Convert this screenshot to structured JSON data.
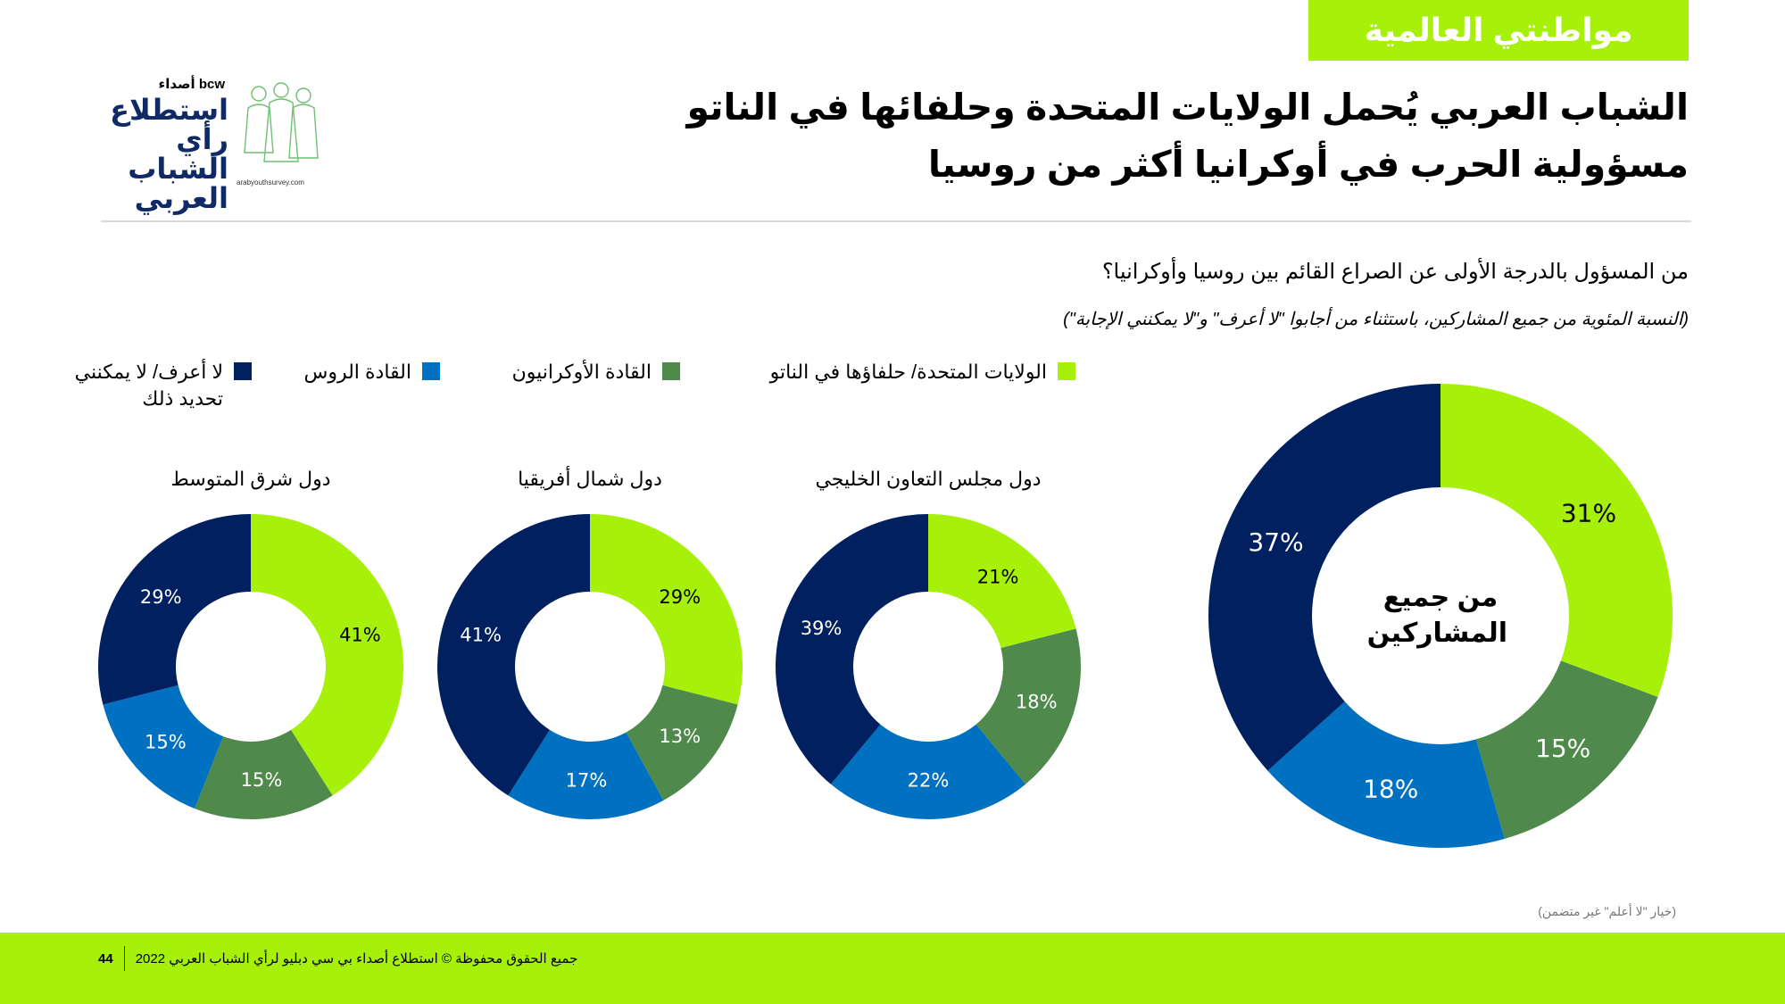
{
  "header": {
    "section_tag": "مواطنتي العالمية",
    "title": "الشباب العربي يُحمل الولايات المتحدة وحلفائها في الناتو مسؤولية الحرب في أوكرانيا أكثر من روسيا"
  },
  "logo": {
    "brand": "bcw أصداء",
    "line1": "استطلاع",
    "line2": "رأي الشباب",
    "line3": "العربي",
    "url": "arabyouthsurvey.com"
  },
  "question": "من المسؤول بالدرجة الأولى عن الصراع القائم بين روسيا وأوكرانيا؟",
  "base_note": "(النسبة المئوية من جميع المشاركين، باستثناء من أجابوا \"لا أعرف\" و\"لا يمكنني الإجابة\")",
  "colors": {
    "us_nato": "#a6f00a",
    "ukraine": "#4f8a4c",
    "russia": "#0070c0",
    "dont_know": "#002060",
    "accent": "#a6f00a"
  },
  "legend": [
    {
      "label": "الولايات المتحدة/ حلفاؤها في الناتو",
      "color": "#a6f00a"
    },
    {
      "label": "القادة الأوكرانيون",
      "color": "#4f8a4c"
    },
    {
      "label": "القادة الروس",
      "color": "#0070c0"
    },
    {
      "label": "لا أعرف/ لا يمكنني تحديد ذلك",
      "color": "#002060"
    }
  ],
  "chart_data": [
    {
      "type": "pie",
      "title": "",
      "center_label": "من جميع المشاركين",
      "categories": [
        "الولايات المتحدة/ حلفاؤها في الناتو",
        "القادة الأوكرانيون",
        "القادة الروس",
        "لا أعرف/ لا يمكنني تحديد ذلك"
      ],
      "values": [
        31,
        15,
        18,
        37
      ],
      "labels": [
        "31%",
        "15%",
        "18%",
        "37%"
      ]
    },
    {
      "type": "pie",
      "title": "دول مجلس التعاون الخليجي",
      "categories": [
        "الولايات المتحدة/ حلفاؤها في الناتو",
        "القادة الأوكرانيون",
        "القادة الروس",
        "لا أعرف/ لا يمكنني تحديد ذلك"
      ],
      "values": [
        21,
        18,
        22,
        39
      ],
      "labels": [
        "21%",
        "18%",
        "22%",
        "39%"
      ]
    },
    {
      "type": "pie",
      "title": "دول شمال أفريقيا",
      "categories": [
        "الولايات المتحدة/ حلفاؤها في الناتو",
        "القادة الأوكرانيون",
        "القادة الروس",
        "لا أعرف/ لا يمكنني تحديد ذلك"
      ],
      "values": [
        29,
        13,
        17,
        41
      ],
      "labels": [
        "29%",
        "13%",
        "17%",
        "41%"
      ]
    },
    {
      "type": "pie",
      "title": "دول شرق المتوسط",
      "categories": [
        "الولايات المتحدة/ حلفاؤها في الناتو",
        "القادة الأوكرانيون",
        "القادة الروس",
        "لا أعرف/ لا يمكنني تحديد ذلك"
      ],
      "values": [
        41,
        15,
        15,
        29
      ],
      "labels": [
        "41%",
        "15%",
        "15%",
        "29%"
      ]
    }
  ],
  "footnote": "(خيار \"لا أعلم\" غير متضمن)",
  "footer": {
    "page": "44",
    "copyright": "جميع الحقوق محفوظة © استطلاع أصداء بي سي دبليو لرأي الشباب العربي 2022"
  }
}
